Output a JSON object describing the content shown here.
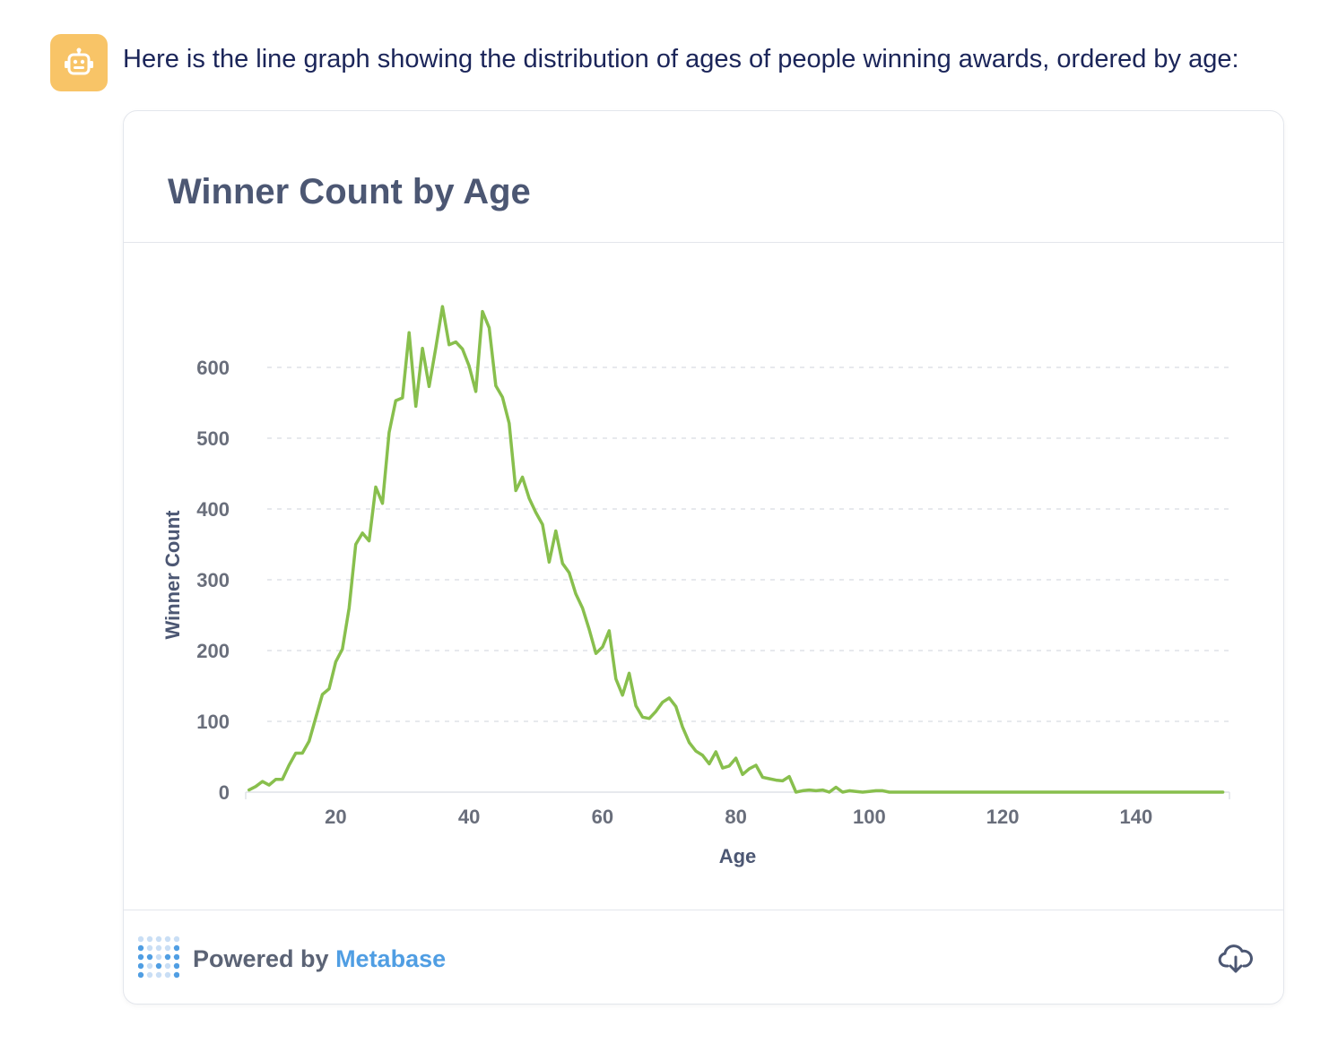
{
  "message": {
    "avatar_icon": "robot-icon",
    "text": "Here is the line graph showing the distribution of ages of people winning awards, ordered by age:"
  },
  "card": {
    "title": "Winner Count by Age",
    "footer_prefix": "Powered by",
    "footer_brand": "Metabase",
    "logo_icon": "metabase-logo-icon",
    "download_icon": "cloud-download-icon"
  },
  "colors": {
    "line": "#88bf4d",
    "avatar": "#f8c467",
    "brand": "#509ee3",
    "title": "#4c5773",
    "message": "#1b2559"
  },
  "chart_data": {
    "type": "line",
    "title": "Winner Count by Age",
    "xlabel": "Age",
    "ylabel": "Winner Count",
    "xlim": [
      6.5,
      154
    ],
    "ylim": [
      0,
      700
    ],
    "xticks": [
      20,
      40,
      60,
      80,
      100,
      120,
      140
    ],
    "yticks": [
      0,
      100,
      200,
      300,
      400,
      500,
      600
    ],
    "grid": "horizontal-dashed",
    "series": [
      {
        "x": [
          7,
          8,
          9,
          10,
          11,
          12,
          13,
          14,
          15,
          16,
          17,
          18,
          19,
          20,
          21,
          22,
          23,
          24,
          25,
          26,
          27,
          28,
          29,
          30,
          31,
          32,
          33,
          34,
          35,
          36,
          37,
          38,
          39,
          40,
          41,
          42,
          43,
          44,
          45,
          46,
          47,
          48,
          49,
          50,
          51,
          52,
          53,
          54,
          55,
          56,
          57,
          58,
          59,
          60,
          61,
          62,
          63,
          64,
          65,
          66,
          67,
          68,
          69,
          70,
          71,
          72,
          73,
          74,
          75,
          76,
          77,
          78,
          79,
          80,
          81,
          82,
          83,
          84,
          85,
          86,
          87,
          88,
          89,
          90,
          91,
          92,
          93,
          94,
          95,
          96,
          97,
          98,
          99,
          100,
          101,
          102,
          103,
          104,
          105,
          110,
          120,
          130,
          140,
          150,
          153
        ],
        "y": [
          3,
          8,
          15,
          10,
          18,
          18,
          38,
          55,
          55,
          72,
          105,
          138,
          146,
          184,
          202,
          260,
          350,
          366,
          355,
          431,
          408,
          508,
          553,
          557,
          649,
          545,
          627,
          573,
          628,
          686,
          632,
          636,
          626,
          602,
          566,
          679,
          656,
          574,
          558,
          521,
          426,
          445,
          415,
          395,
          378,
          325,
          369,
          323,
          310,
          280,
          260,
          230,
          196,
          205,
          228,
          160,
          137,
          168,
          122,
          106,
          104,
          114,
          127,
          133,
          121,
          92,
          70,
          58,
          52,
          40,
          57,
          34,
          37,
          48,
          25,
          33,
          38,
          21,
          19,
          17,
          16,
          22,
          0,
          2,
          3,
          2,
          3,
          0,
          7,
          0,
          2,
          1,
          0,
          1,
          2,
          2,
          0,
          0,
          0,
          0,
          0,
          0,
          0,
          0,
          0
        ]
      }
    ]
  }
}
